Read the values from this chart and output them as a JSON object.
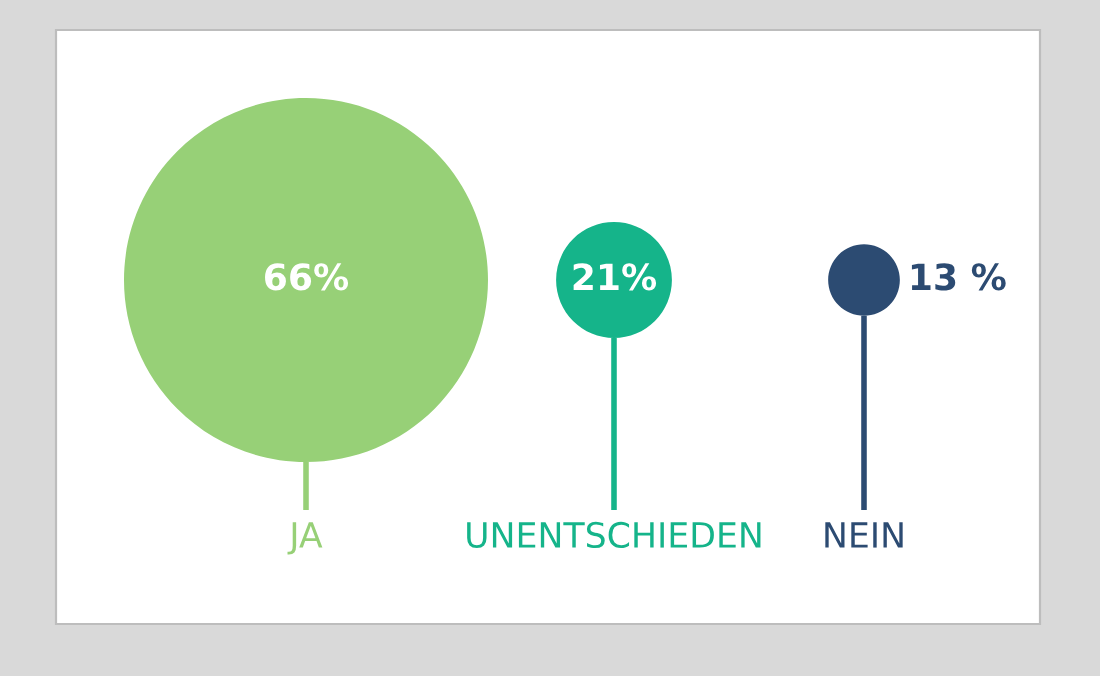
{
  "chart_data": {
    "type": "other",
    "categories": [
      "JA",
      "UNENTSCHIEDEN",
      "NEIN"
    ],
    "values": [
      66,
      21,
      13
    ],
    "value_labels": [
      "66%",
      "21%",
      "13 %"
    ],
    "colors": [
      "#97d077",
      "#15b48a",
      "#2c4b72"
    ]
  }
}
